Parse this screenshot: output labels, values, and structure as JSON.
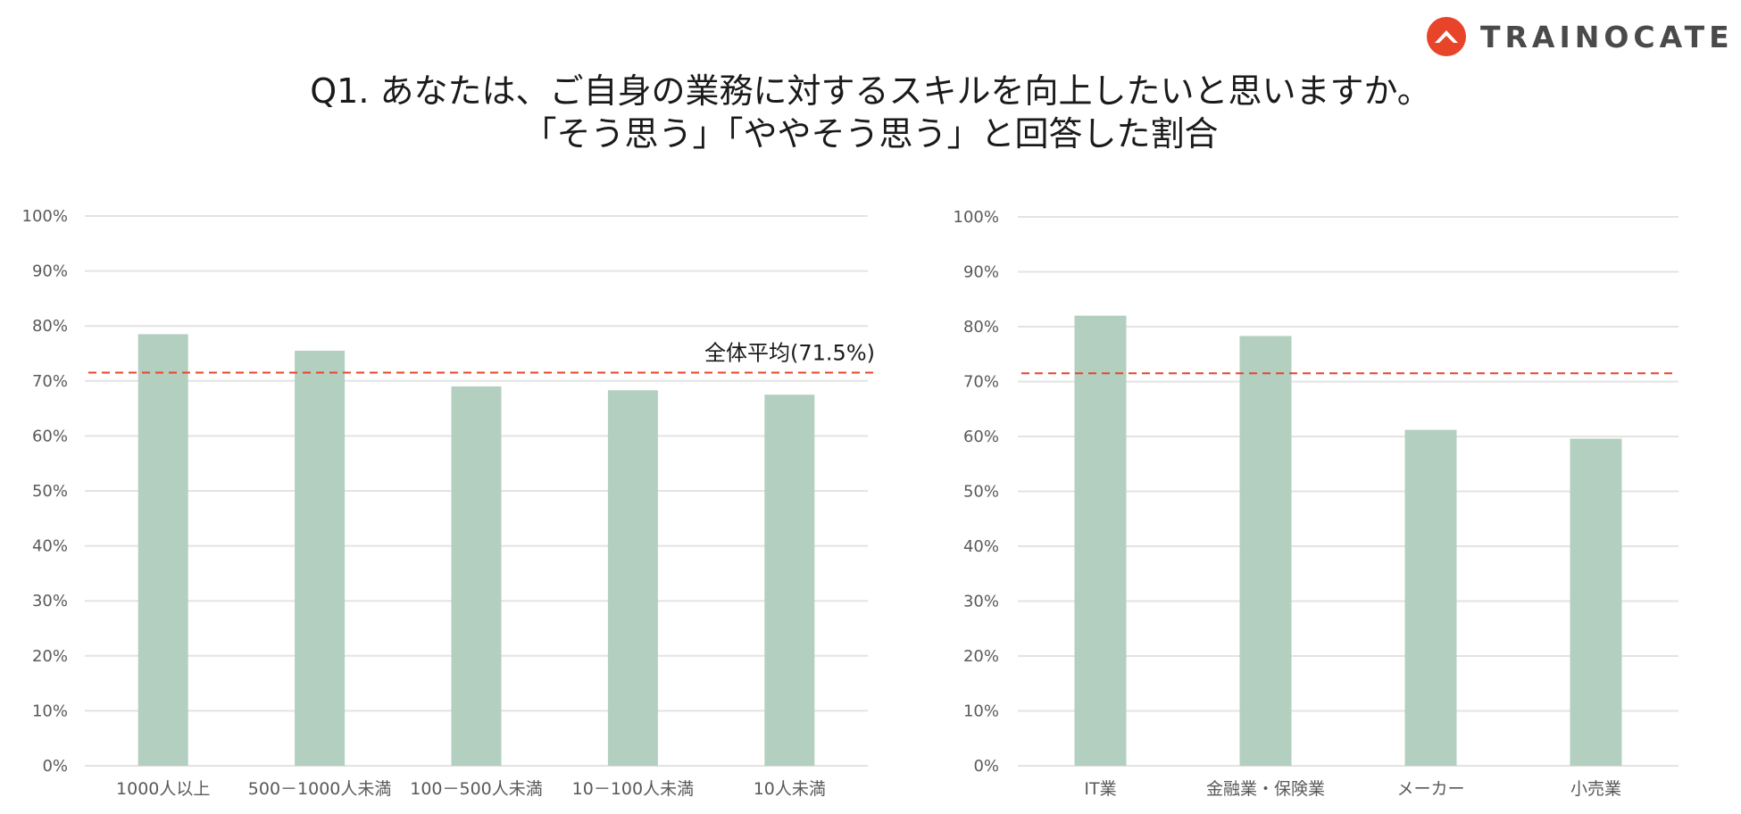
{
  "brand": {
    "name": "TRAINOCATE",
    "mark_color": "#e8442a"
  },
  "title": {
    "line1": "Q1. あなたは、ご自身の業務に対するスキルを向上したいと思いますか。",
    "line2": "「そう思う」「ややそう思う」と回答した割合"
  },
  "colors": {
    "bar": "#b3cfbf",
    "average_line": "#e8442a",
    "grid": "#e3e3e3"
  },
  "chart_data": [
    {
      "type": "bar",
      "categories": [
        "1000人以上",
        "500－1000人未満",
        "100－500人未満",
        "10－100人未満",
        "10人未満"
      ],
      "values": [
        78.5,
        75.5,
        69,
        68.3,
        67.5
      ],
      "ylim": [
        0,
        100
      ],
      "yticks": [
        "0%",
        "10%",
        "20%",
        "30%",
        "40%",
        "50%",
        "60%",
        "70%",
        "80%",
        "90%",
        "100%"
      ],
      "grid": true,
      "average": {
        "value": 71.5,
        "label": "全体平均(71.5%)"
      }
    },
    {
      "type": "bar",
      "categories": [
        "IT業",
        "金融業・保険業",
        "メーカー",
        "小売業"
      ],
      "values": [
        82,
        78.3,
        61.2,
        59.6
      ],
      "ylim": [
        0,
        100
      ],
      "yticks": [
        "0%",
        "10%",
        "20%",
        "30%",
        "40%",
        "50%",
        "60%",
        "70%",
        "80%",
        "90%",
        "100%"
      ],
      "grid": true,
      "average": {
        "value": 71.5
      }
    }
  ]
}
